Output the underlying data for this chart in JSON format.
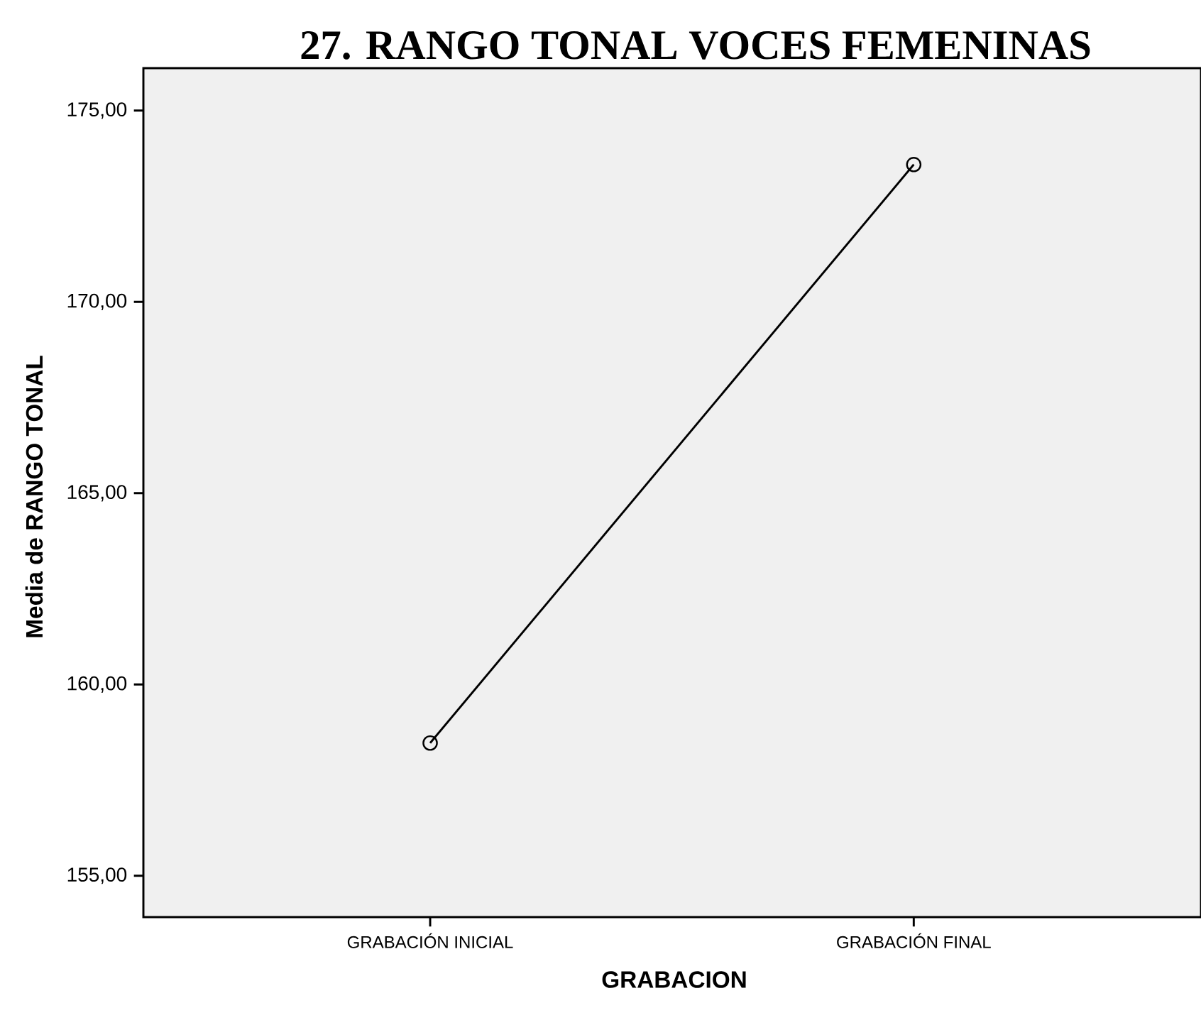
{
  "chart_data": {
    "type": "line",
    "title": "27. RANGO TONAL VOCES FEMENINAS",
    "xlabel": "GRABACION",
    "ylabel": "Media de RANGO TONAL",
    "categories": [
      "GRABACIÓN INICIAL",
      "GRABACIÓN FINAL"
    ],
    "series": [
      {
        "color": "#000000",
        "values": [
          158.47,
          173.59
        ]
      }
    ],
    "ylim": [
      153.92,
      176.11
    ],
    "yticks": [
      {
        "value": 155,
        "label": "155,00"
      },
      {
        "value": 160,
        "label": "160,00"
      },
      {
        "value": 165,
        "label": "165,00"
      },
      {
        "value": 170,
        "label": "170,00"
      },
      {
        "value": 175,
        "label": "175,00"
      }
    ],
    "marker": "circle",
    "line_style": "solid"
  }
}
